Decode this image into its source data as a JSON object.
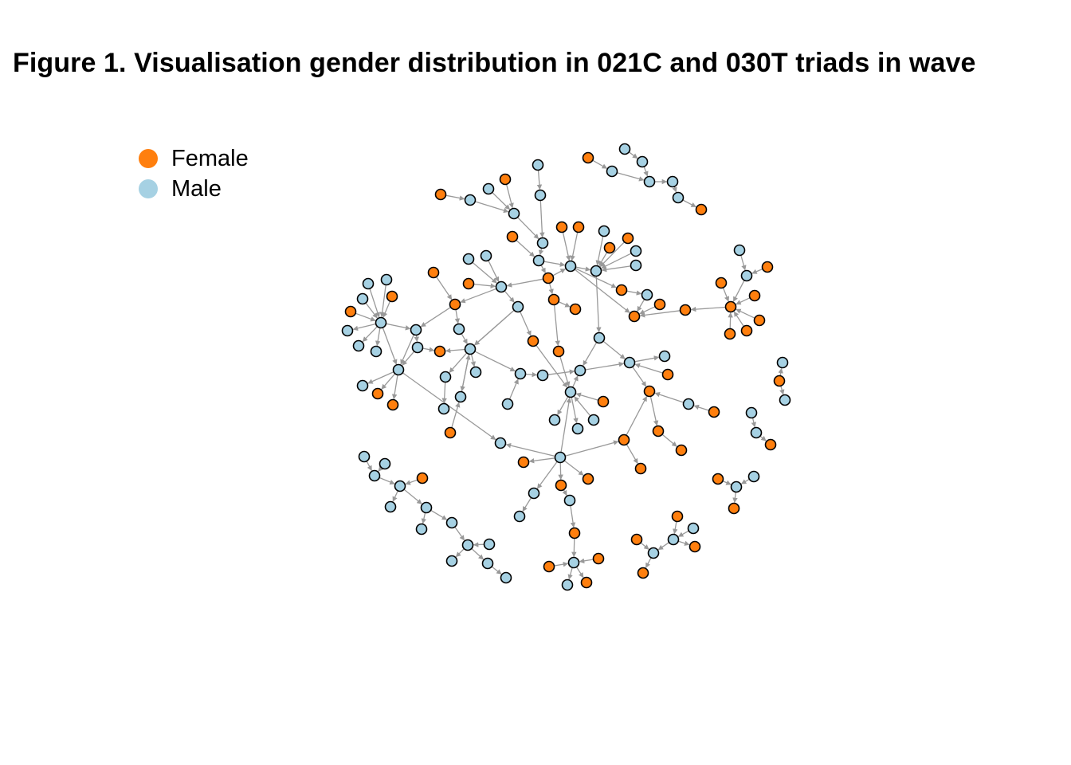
{
  "title": "Figure 1. Visualisation gender distribution in 021C and 030T triads in wave",
  "legend": {
    "items": [
      {
        "label": "Female",
        "color": "#FF7F0E"
      },
      {
        "label": "Male",
        "color": "#A6D1E3"
      }
    ]
  },
  "colors": {
    "female": "#FF7F0E",
    "male": "#A6D1E3",
    "edge": "#999999",
    "node_border": "#000000"
  }
}
